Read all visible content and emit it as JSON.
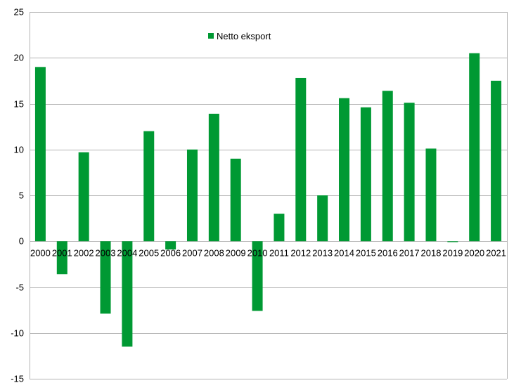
{
  "chart_data": {
    "type": "bar",
    "title": "",
    "xlabel": "",
    "ylabel": "",
    "categories": [
      "2000",
      "2001",
      "2002",
      "2003",
      "2004",
      "2005",
      "2006",
      "2007",
      "2008",
      "2009",
      "2010",
      "2011",
      "2012",
      "2013",
      "2014",
      "2015",
      "2016",
      "2017",
      "2018",
      "2019",
      "2020",
      "2021"
    ],
    "series": [
      {
        "name": "Netto eksport",
        "color": "#009933",
        "values": [
          19.0,
          -3.6,
          9.7,
          -7.9,
          -11.5,
          12.0,
          -0.9,
          10.0,
          13.9,
          9.0,
          -7.6,
          3.0,
          17.8,
          5.0,
          15.6,
          14.6,
          16.4,
          15.1,
          10.1,
          -0.1,
          20.5,
          17.5
        ]
      }
    ],
    "ylim": [
      -15,
      25
    ],
    "yticks": [
      -15,
      -10,
      -5,
      0,
      5,
      10,
      15,
      20,
      25
    ],
    "grid": true,
    "legend_position": "top-center"
  }
}
